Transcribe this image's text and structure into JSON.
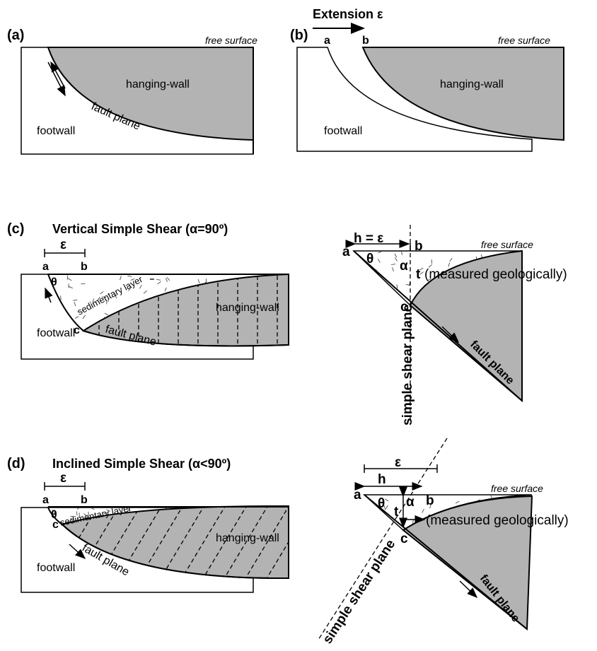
{
  "panel_a": {
    "label": "(a)",
    "free_surface": "free surface",
    "hanging_wall": "hanging-wall",
    "fault_plane": "fault plane",
    "footwall": "footwall"
  },
  "panel_b": {
    "label": "(b)",
    "extension": "Extension ε",
    "point_a": "a",
    "point_b": "b",
    "free_surface": "free surface",
    "hanging_wall": "hanging-wall",
    "footwall": "footwall"
  },
  "panel_c": {
    "label": "(c)",
    "title": "Vertical Simple Shear (α=90º)",
    "left": {
      "epsilon": "ε",
      "point_a": "a",
      "point_b": "b",
      "theta": "θ",
      "point_c": "c",
      "sedimentary_layer": "sedimentary layer",
      "hanging_wall": "hanging-wall",
      "footwall": "footwall",
      "fault_plane": "fault plane"
    },
    "right": {
      "h": "h = ε",
      "free_surface": "free surface",
      "point_a": "a",
      "point_b": "b",
      "theta": "θ",
      "alpha": "α",
      "t": "t",
      "measured": "(measured geologically)",
      "point_c": "c",
      "shear_plane": "simple shear plane",
      "fault_plane": "fault plane"
    }
  },
  "panel_d": {
    "label": "(d)",
    "title": "Inclined Simple Shear (α<90º)",
    "left": {
      "epsilon": "ε",
      "point_a": "a",
      "point_b": "b",
      "theta": "θ",
      "point_c": "c",
      "sedimentary_layer": "sedimentary layer",
      "hanging_wall": "hanging-wall",
      "footwall": "footwall",
      "fault_plane": "fault plane"
    },
    "right": {
      "epsilon": "ε",
      "h": "h",
      "free_surface": "free surface",
      "point_a": "a",
      "point_b": "b",
      "theta": "θ",
      "alpha": "α",
      "t": "t",
      "measured": "(measured geologically)",
      "point_c": "c",
      "shear_plane": "simple shear plane",
      "fault_plane": "fault plane"
    }
  }
}
